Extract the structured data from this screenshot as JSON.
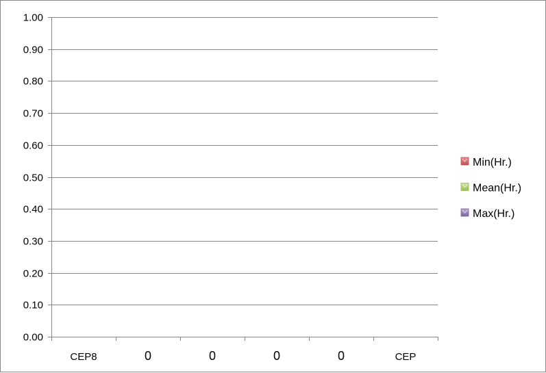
{
  "chart_data": {
    "type": "bar",
    "title": "",
    "xlabel": "",
    "ylabel": "",
    "ylim": [
      0,
      1
    ],
    "y_ticks": [
      "0.00",
      "0.10",
      "0.20",
      "0.30",
      "0.40",
      "0.50",
      "0.60",
      "0.70",
      "0.80",
      "0.90",
      "1.00"
    ],
    "categories": [
      "CEP8",
      "0",
      "0",
      "0",
      "0",
      "CEP"
    ],
    "series": [
      {
        "name": "Min(Hr.)",
        "color": "#c0504d",
        "values": [
          0,
          0,
          0,
          0,
          0,
          0
        ]
      },
      {
        "name": "Mean(Hr.)",
        "color": "#9bbb59",
        "values": [
          0,
          0,
          0,
          0,
          0,
          0
        ]
      },
      {
        "name": "Max(Hr.)",
        "color": "#8064a2",
        "values": [
          0,
          0,
          0,
          0,
          0,
          0
        ]
      }
    ],
    "grid": true,
    "legend_position": "right",
    "colors": {
      "gridline": "#868686",
      "axis": "#868686",
      "border": "#868686"
    }
  }
}
